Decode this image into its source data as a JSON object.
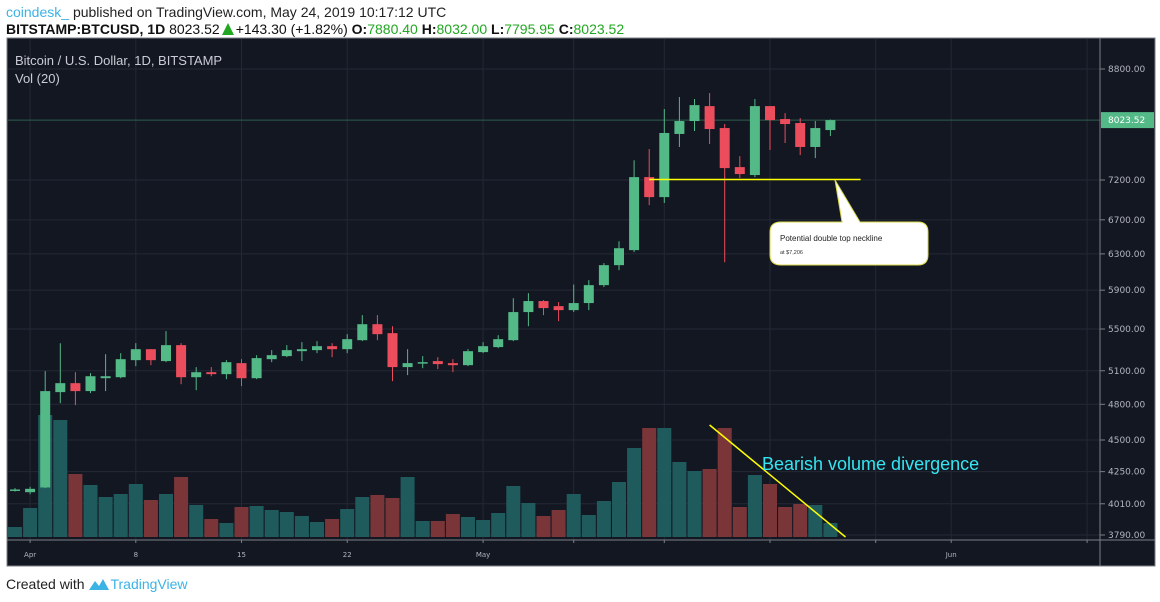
{
  "header": {
    "user": "coindesk_",
    "published": "published on TradingView.com, May 24, 2019 10:17:12 UTC",
    "symbol": "BITSTAMP:BTCUSD, 1D",
    "last": "8023.52",
    "change": "+143.30 (+1.82%)",
    "o_label": "O:",
    "o": "7880.40",
    "h_label": "H:",
    "h": "8032.00",
    "l_label": "L:",
    "l": "7795.95",
    "c_label": "C:",
    "c": "8023.52"
  },
  "chart_title": "Bitcoin / U.S. Dollar, 1D, BITSTAMP",
  "volume_label": "Vol (20)",
  "footer": {
    "created": "Created with",
    "brand": "TradingView"
  },
  "colors": {
    "up": "#53b987",
    "down": "#eb4d5c",
    "vol_up": "#1f5b5c",
    "vol_down": "#7a3539",
    "background": "#131722",
    "annotation": "#ffff00",
    "divergence_text": "#33e6f2"
  },
  "chart_data": {
    "type": "candlestick",
    "scale": "log",
    "grid": true,
    "ylim": [
      3790,
      8800
    ],
    "yticks": [
      "8800.00",
      "7200.00",
      "6700.00",
      "6300.00",
      "5900.00",
      "5500.00",
      "5100.00",
      "4800.00",
      "4500.00",
      "4250.00",
      "4010.00",
      "3790.00"
    ],
    "last_price_label": "8023.52",
    "x_start": "2019-03-31",
    "xticks": [
      {
        "date": "2019-04-01",
        "label": "Apr"
      },
      {
        "date": "2019-04-08",
        "label": "8"
      },
      {
        "date": "2019-04-15",
        "label": "15"
      },
      {
        "date": "2019-04-22",
        "label": "22"
      },
      {
        "date": "2019-05-01",
        "label": "May"
      },
      {
        "date": "2019-05-07",
        "label": ""
      },
      {
        "date": "2019-05-13",
        "label": ""
      },
      {
        "date": "2019-05-20",
        "label": ""
      },
      {
        "date": "2019-05-27",
        "label": ""
      },
      {
        "date": "2019-06-01",
        "label": "Jun"
      },
      {
        "date": "2019-06-10",
        "label": ""
      }
    ],
    "ohlc": [
      [
        4110,
        4125,
        4100,
        4115
      ],
      [
        4095,
        4135,
        4080,
        4120
      ],
      [
        4130,
        5097,
        4125,
        4916
      ],
      [
        4907,
        5360,
        4810,
        4987
      ],
      [
        4987,
        5087,
        4793,
        4916
      ],
      [
        4916,
        5078,
        4898,
        5050
      ],
      [
        5032,
        5255,
        4916,
        5050
      ],
      [
        5041,
        5265,
        5032,
        5208
      ],
      [
        5199,
        5361,
        5143,
        5303
      ],
      [
        5303,
        5303,
        5152,
        5199
      ],
      [
        5190,
        5479,
        5180,
        5342
      ],
      [
        5342,
        5361,
        4978,
        5041
      ],
      [
        5041,
        5134,
        4924,
        5087
      ],
      [
        5087,
        5134,
        5050,
        5069
      ],
      [
        5069,
        5199,
        5023,
        5180
      ],
      [
        5171,
        5208,
        4960,
        5032
      ],
      [
        5032,
        5246,
        5023,
        5218
      ],
      [
        5208,
        5294,
        5180,
        5246
      ],
      [
        5237,
        5342,
        5227,
        5294
      ],
      [
        5284,
        5371,
        5190,
        5303
      ],
      [
        5294,
        5381,
        5265,
        5332
      ],
      [
        5332,
        5361,
        5227,
        5303
      ],
      [
        5303,
        5449,
        5265,
        5400
      ],
      [
        5390,
        5640,
        5381,
        5548
      ],
      [
        5548,
        5640,
        5390,
        5449
      ],
      [
        5459,
        5528,
        5005,
        5134
      ],
      [
        5134,
        5303,
        5060,
        5171
      ],
      [
        5171,
        5237,
        5124,
        5180
      ],
      [
        5190,
        5227,
        5115,
        5162
      ],
      [
        5171,
        5208,
        5087,
        5152
      ],
      [
        5152,
        5303,
        5143,
        5284
      ],
      [
        5275,
        5371,
        5265,
        5332
      ],
      [
        5323,
        5439,
        5313,
        5400
      ],
      [
        5390,
        5815,
        5381,
        5671
      ],
      [
        5671,
        5868,
        5528,
        5785
      ],
      [
        5785,
        5795,
        5640,
        5712
      ],
      [
        5732,
        5774,
        5579,
        5691
      ],
      [
        5691,
        5960,
        5671,
        5764
      ],
      [
        5764,
        6008,
        5691,
        5954
      ],
      [
        5954,
        6196,
        5933,
        6173
      ],
      [
        6173,
        6445,
        6118,
        6365
      ],
      [
        6343,
        7461,
        6320,
        7238
      ],
      [
        7238,
        7615,
        6880,
        6981
      ],
      [
        6981,
        8186,
        6907,
        7839
      ],
      [
        7825,
        8365,
        7643,
        8010
      ],
      [
        8010,
        8335,
        7867,
        8244
      ],
      [
        8229,
        8426,
        7684,
        7895
      ],
      [
        7909,
        7967,
        6206,
        7357
      ],
      [
        7370,
        7518,
        7225,
        7278
      ],
      [
        7265,
        8335,
        7238,
        8229
      ],
      [
        8229,
        8229,
        7602,
        8024
      ],
      [
        8039,
        8126,
        7698,
        7967
      ],
      [
        7981,
        8053,
        7532,
        7643
      ],
      [
        7643,
        8010,
        7491,
        7909
      ],
      [
        7880.4,
        8032.0,
        7795.95,
        8023.52
      ]
    ],
    "volume_relative": [
      10,
      29,
      122,
      117,
      63,
      52,
      40,
      43,
      53,
      37,
      43,
      60,
      32,
      18,
      14,
      30,
      31,
      27,
      25,
      21,
      15,
      18,
      28,
      40,
      42,
      39,
      60,
      16,
      16,
      23,
      20,
      17,
      24,
      51,
      34,
      21,
      27,
      43,
      22,
      36,
      55,
      89,
      109,
      109,
      75,
      66,
      68,
      109,
      30,
      62,
      53,
      30,
      33,
      32,
      14
    ],
    "annotations": {
      "neckline": {
        "price": 7206,
        "from": "2019-05-12",
        "to": "2019-05-26"
      },
      "callout_title": "Potential double top neckline",
      "callout_sub": "at $7,206",
      "divergence_text": "Bearish volume divergence",
      "divergence_line": {
        "from": "2019-05-16",
        "to": "2019-05-25"
      }
    }
  }
}
